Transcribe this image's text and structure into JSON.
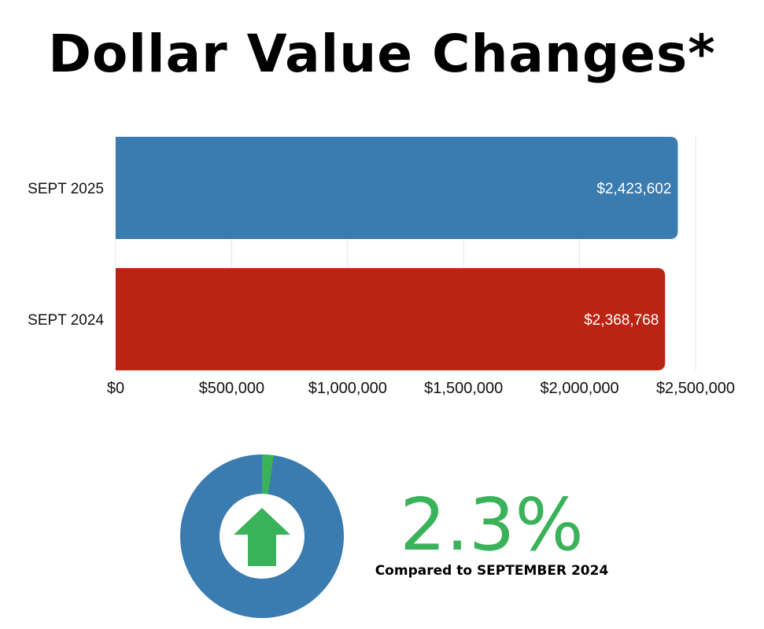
{
  "title": "Dollar Value Changes*",
  "chart_data": {
    "type": "bar",
    "orientation": "horizontal",
    "categories": [
      "SEPT 2025",
      "SEPT 2024"
    ],
    "values": [
      2423602,
      2368768
    ],
    "value_labels": [
      "$2,423,602",
      "$2,368,768"
    ],
    "colors": [
      "#3a7bb0",
      "#bb2413"
    ],
    "xlim": [
      0,
      2500000
    ],
    "x_ticks": [
      0,
      500000,
      1000000,
      1500000,
      2000000,
      2500000
    ],
    "x_tick_labels": [
      "$0",
      "$500,000",
      "$1,000,000",
      "$1,500,000",
      "$2,000,000",
      "$2,500,000"
    ],
    "grid": true
  },
  "change": {
    "value": "2.3%",
    "caption": "Compared to SEPTEMBER 2024",
    "color": "#3ab25a",
    "fraction": 0.023,
    "direction_icon": "arrow-up-icon",
    "ring_color": "#3a7bb0"
  }
}
